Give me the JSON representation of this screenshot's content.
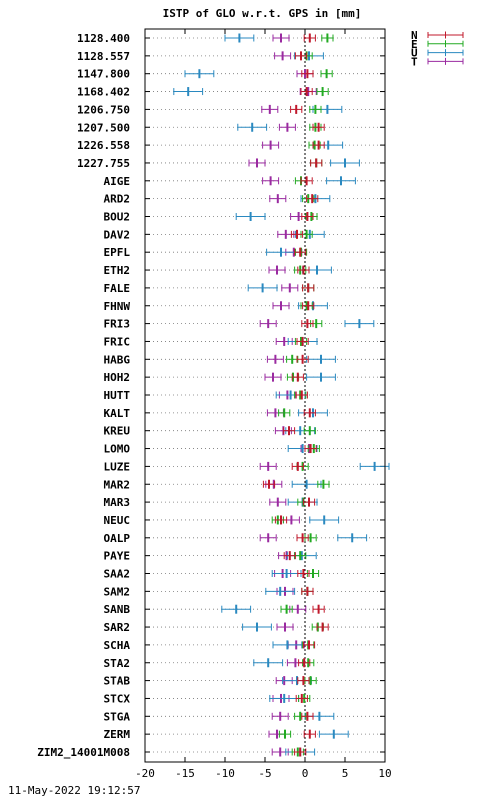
{
  "chart_data": {
    "type": "scatter",
    "title": "ISTP of GLO w.r.t. GPS in [mm]",
    "xlim": [
      -20,
      10
    ],
    "x_ticks": [
      -20,
      -15,
      -10,
      -5,
      0,
      5,
      10
    ],
    "grid": "horizontal dotted per station; vertical dotted at 0",
    "legend_position": "top-right (outside plot)",
    "footer": "11-May-2022 19:12:57",
    "series": [
      {
        "name": "N",
        "color": "#c0182b",
        "errbar": 0.7
      },
      {
        "name": "E",
        "color": "#22aa22",
        "errbar": 0.7
      },
      {
        "name": "U",
        "color": "#2a89c0",
        "errbar": 1.8
      },
      {
        "name": "T",
        "color": "#9a2aa0",
        "errbar": 1.0
      }
    ],
    "stations": [
      {
        "label": "1128.400",
        "N": 0.6,
        "E": 2.8,
        "U": -8.2,
        "T": -3.0
      },
      {
        "label": "1128.557",
        "N": -0.5,
        "E": 0.2,
        "U": 0.5,
        "T": -2.8
      },
      {
        "label": "1147.800",
        "N": 0.3,
        "E": 2.7,
        "U": -13.2,
        "T": 0.0
      },
      {
        "label": "1168.402",
        "N": 0.2,
        "E": 2.2,
        "U": -14.6,
        "T": 0.4
      },
      {
        "label": "1206.750",
        "N": -1.1,
        "E": 1.3,
        "U": 2.8,
        "T": -4.4
      },
      {
        "label": "1207.500",
        "N": 1.7,
        "E": 1.3,
        "U": -6.6,
        "T": -2.2
      },
      {
        "label": "1226.558",
        "N": 1.7,
        "E": 1.2,
        "U": 2.9,
        "T": -4.3
      },
      {
        "label": "1227.755",
        "N": 1.4,
        "E": 1.4,
        "U": 5.0,
        "T": -6.0
      },
      {
        "label": "AIGE",
        "N": 0.2,
        "E": -0.5,
        "U": 4.5,
        "T": -4.3
      },
      {
        "label": "ARD2",
        "N": 0.9,
        "E": 0.4,
        "U": 1.3,
        "T": -3.4
      },
      {
        "label": "BOU2",
        "N": 0.3,
        "E": 0.8,
        "U": -6.8,
        "T": -0.8
      },
      {
        "label": "DAV2",
        "N": -1.0,
        "E": 0.2,
        "U": 0.6,
        "T": -2.4
      },
      {
        "label": "EPFL",
        "N": -0.6,
        "E": -0.5,
        "U": -3.0,
        "T": -1.4
      },
      {
        "label": "ETH2",
        "N": -0.2,
        "E": -0.6,
        "U": 1.5,
        "T": -3.5
      },
      {
        "label": "FALE",
        "N": 0.4,
        "E": 0.4,
        "U": -5.3,
        "T": -1.9
      },
      {
        "label": "FHNW",
        "N": 0.4,
        "E": 0.2,
        "U": 1.0,
        "T": -3.0
      },
      {
        "label": "FRI3",
        "N": 0.3,
        "E": 1.4,
        "U": 6.8,
        "T": -4.6
      },
      {
        "label": "FRIC",
        "N": -0.3,
        "E": -0.5,
        "U": -0.3,
        "T": -2.6
      },
      {
        "label": "HABG",
        "N": -0.3,
        "E": -1.6,
        "U": 2.0,
        "T": -3.7
      },
      {
        "label": "HOH2",
        "N": -0.9,
        "E": -1.5,
        "U": 2.0,
        "T": -4.0
      },
      {
        "label": "HUTT",
        "N": -0.4,
        "E": -0.6,
        "U": -1.8,
        "T": -2.2
      },
      {
        "label": "KALT",
        "N": 0.6,
        "E": -2.6,
        "U": 1.0,
        "T": -3.7
      },
      {
        "label": "KREU",
        "N": -2.0,
        "E": 0.6,
        "U": -0.6,
        "T": -2.7
      },
      {
        "label": "LOMO",
        "N": 0.7,
        "E": 1.1,
        "U": -0.3,
        "T": 0.5
      },
      {
        "label": "LUZE",
        "N": -0.9,
        "E": -0.3,
        "U": 8.7,
        "T": -4.6
      },
      {
        "label": "MAR2",
        "N": -4.5,
        "E": 2.3,
        "U": 0.2,
        "T": -3.9
      },
      {
        "label": "MAR3",
        "N": 0.5,
        "E": -0.2,
        "U": -0.3,
        "T": -3.4
      },
      {
        "label": "NEUC",
        "N": -3.0,
        "E": -3.4,
        "U": 2.4,
        "T": -1.7
      },
      {
        "label": "OALP",
        "N": -0.3,
        "E": 0.7,
        "U": 5.9,
        "T": -4.6
      },
      {
        "label": "PAYE",
        "N": -1.9,
        "E": -0.6,
        "U": -0.4,
        "T": -2.3
      },
      {
        "label": "SAA2",
        "N": -0.2,
        "E": 1.0,
        "U": -2.3,
        "T": -2.8
      },
      {
        "label": "SAM2",
        "N": 0.3,
        "E": 0.3,
        "U": -3.1,
        "T": -2.5
      },
      {
        "label": "SANB",
        "N": 1.7,
        "E": -2.3,
        "U": -8.6,
        "T": -0.9
      },
      {
        "label": "SAR2",
        "N": 2.2,
        "E": 1.6,
        "U": -6.0,
        "T": -2.5
      },
      {
        "label": "SCHA",
        "N": 0.5,
        "E": 0.4,
        "U": -2.2,
        "T": -1.1
      },
      {
        "label": "STA2",
        "N": -0.1,
        "E": 0.4,
        "U": -4.6,
        "T": -1.2
      },
      {
        "label": "STAB",
        "N": -0.2,
        "E": 0.7,
        "U": -1.0,
        "T": -2.6
      },
      {
        "label": "STCX",
        "N": -0.4,
        "E": -0.1,
        "U": -2.6,
        "T": -3.0
      },
      {
        "label": "STGA",
        "N": 0.3,
        "E": -0.6,
        "U": 1.8,
        "T": -3.1
      },
      {
        "label": "ZERM",
        "N": 0.6,
        "E": -2.5,
        "U": 3.6,
        "T": -3.5
      },
      {
        "label": "ZIM2_14001M008",
        "N": -0.6,
        "E": -0.9,
        "U": -0.6,
        "T": -3.1
      }
    ]
  }
}
